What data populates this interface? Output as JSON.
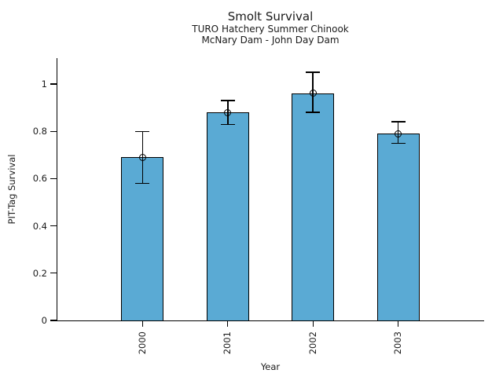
{
  "chart_data": {
    "type": "bar",
    "title": "Smolt Survival",
    "subtitle1": "TURO Hatchery Summer Chinook",
    "subtitle2": "McNary Dam - John Day Dam",
    "xlabel": "Year",
    "ylabel": "PIT-Tag Survival",
    "categories": [
      "2000",
      "2001",
      "2002",
      "2003"
    ],
    "series": [
      {
        "name": "PIT-Tag Survival",
        "values": [
          0.69,
          0.88,
          0.96,
          0.79
        ],
        "error_low": [
          0.58,
          0.83,
          0.88,
          0.75
        ],
        "error_high": [
          0.8,
          0.93,
          1.05,
          0.84
        ]
      }
    ],
    "yticks": [
      0,
      0.2,
      0.4,
      0.6,
      0.8,
      1
    ],
    "ytick_labels": [
      "0",
      "0.2",
      "0.4",
      "0.6",
      "0.8",
      "1"
    ],
    "ylim": [
      0,
      1.11
    ],
    "xlim": [
      -1,
      4
    ],
    "bar_width_units": 0.5,
    "grid": false,
    "legend": "none",
    "error_marker": "open-circle",
    "colors": {
      "bar_fill": "#5AAAD4",
      "bar_edge": "#000000",
      "axis": "#000000",
      "text": "#1a1a1a",
      "background": "#ffffff"
    }
  }
}
